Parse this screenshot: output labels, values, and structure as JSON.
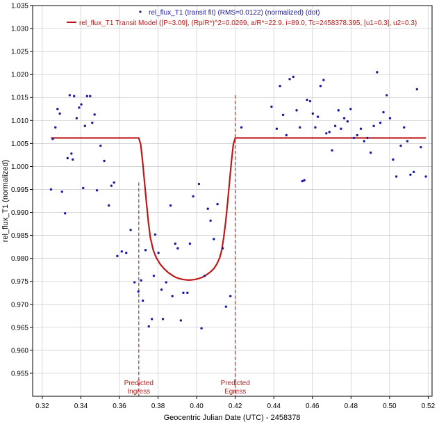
{
  "chart_data": {
    "type": "scatter",
    "xlabel": "Geocentric Julian Date (UTC) - 2458378",
    "ylabel": "rel_flux_T1 (normalized)",
    "xlim": [
      0.315,
      0.522
    ],
    "ylim": [
      0.95,
      1.035
    ],
    "xticks": [
      "0.32",
      "0.34",
      "0.36",
      "0.38",
      "0.40",
      "0.42",
      "0.44",
      "0.46",
      "0.48",
      "0.50",
      "0.52"
    ],
    "yticks": [
      "0.955",
      "0.960",
      "0.965",
      "0.970",
      "0.975",
      "0.980",
      "0.985",
      "0.990",
      "0.995",
      "1.000",
      "1.005",
      "1.010",
      "1.015",
      "1.020",
      "1.025",
      "1.030",
      "1.035"
    ],
    "grid": true,
    "legend_position": "top-center",
    "colors": {
      "data": "#1a1aa6",
      "model": "#c01818",
      "marker": "#c83030"
    },
    "series": [
      {
        "name": "rel_flux_T1 (transit fit) (RMS=0.0122) (normalized) (dot)",
        "kind": "points",
        "x": [
          0.3245,
          0.3254,
          0.3268,
          0.3279,
          0.3291,
          0.3302,
          0.3318,
          0.3331,
          0.3342,
          0.3351,
          0.3358,
          0.3365,
          0.3378,
          0.3391,
          0.3402,
          0.3412,
          0.3421,
          0.3432,
          0.3448,
          0.3459,
          0.3471,
          0.3483,
          0.3502,
          0.3521,
          0.3545,
          0.3558,
          0.3572,
          0.3589,
          0.3612,
          0.3635,
          0.3658,
          0.3678,
          0.3698,
          0.3712,
          0.3721,
          0.3735,
          0.3752,
          0.3768,
          0.3778,
          0.3785,
          0.3802,
          0.3818,
          0.3825,
          0.3842,
          0.3865,
          0.3874,
          0.3889,
          0.3902,
          0.3918,
          0.3931,
          0.3952,
          0.3965,
          0.3982,
          0.4012,
          0.4025,
          0.4041,
          0.4058,
          0.4072,
          0.4089,
          0.4108,
          0.4135,
          0.4152,
          0.4175,
          0.4232,
          0.4388,
          0.4415,
          0.4432,
          0.4448,
          0.4465,
          0.4482,
          0.4501,
          0.4518,
          0.4535,
          0.4548,
          0.4558,
          0.4572,
          0.4588,
          0.4602,
          0.4615,
          0.4628,
          0.4642,
          0.4658,
          0.4672,
          0.4688,
          0.4702,
          0.4718,
          0.4735,
          0.4748,
          0.4765,
          0.4782,
          0.4798,
          0.4815,
          0.4832,
          0.4851,
          0.4868,
          0.4885,
          0.4902,
          0.4918,
          0.4935,
          0.4952,
          0.4968,
          0.4985,
          0.5002,
          0.5018,
          0.5035,
          0.5058,
          0.5075,
          0.5092,
          0.5108,
          0.5125,
          0.5142,
          0.5162,
          0.5188
        ],
        "y": [
          0.995,
          1.006,
          1.0085,
          1.0125,
          1.0115,
          0.9945,
          0.9898,
          1.0018,
          1.0155,
          1.0028,
          1.0015,
          1.0153,
          1.0105,
          1.0128,
          1.0135,
          0.9953,
          1.0088,
          1.0153,
          1.0153,
          1.0095,
          1.0113,
          0.9948,
          1.0045,
          1.0012,
          0.9915,
          0.9958,
          0.9965,
          0.9805,
          0.9815,
          0.9812,
          0.9862,
          0.9748,
          0.9728,
          0.9752,
          0.9708,
          0.9818,
          0.9652,
          0.9668,
          0.9762,
          0.9852,
          0.9812,
          0.9732,
          0.9668,
          0.9748,
          0.9915,
          0.9718,
          0.9832,
          0.9822,
          0.9665,
          0.9725,
          0.9725,
          0.9832,
          0.9935,
          0.9962,
          0.9648,
          0.9762,
          0.9908,
          0.9882,
          0.9842,
          0.9918,
          0.9822,
          0.9695,
          0.9718,
          1.0085,
          1.013,
          1.0082,
          1.0175,
          1.0112,
          1.0068,
          1.019,
          1.0195,
          1.0122,
          1.0085,
          0.9968,
          0.997,
          1.0145,
          1.0142,
          1.0115,
          1.0085,
          1.0108,
          1.0175,
          1.0188,
          1.0072,
          1.0075,
          1.0035,
          1.0088,
          1.0122,
          1.0082,
          1.0105,
          1.0098,
          1.0125,
          1.0062,
          1.0068,
          1.0082,
          1.0055,
          1.0062,
          1.003,
          1.0088,
          1.0205,
          1.0095,
          1.0118,
          1.0155,
          1.0105,
          1.0015,
          0.9978,
          1.0045,
          1.0085,
          1.0055,
          0.9982,
          0.9988,
          1.0168,
          1.0042,
          0.9978
        ]
      },
      {
        "name": "rel_flux_T1 Transit Model ([P=3.09], (Rp/R*)^2=0.0269, a/R*=22.9, i=89.0, Tc=2458378.395, [u1=0.3], u2=0.3)",
        "kind": "line",
        "x": [
          0.3245,
          0.37,
          0.371,
          0.372,
          0.373,
          0.374,
          0.375,
          0.376,
          0.3775,
          0.379,
          0.381,
          0.383,
          0.385,
          0.387,
          0.389,
          0.391,
          0.393,
          0.395,
          0.397,
          0.399,
          0.401,
          0.403,
          0.405,
          0.407,
          0.409,
          0.4105,
          0.412,
          0.413,
          0.414,
          0.415,
          0.416,
          0.417,
          0.418,
          0.419,
          0.42,
          0.421,
          0.5188
        ],
        "y": [
          1.0062,
          1.0062,
          1.0048,
          1.001,
          0.9965,
          0.992,
          0.9878,
          0.9845,
          0.9818,
          0.9802,
          0.9788,
          0.9778,
          0.977,
          0.9764,
          0.9759,
          0.9756,
          0.9754,
          0.9753,
          0.9753,
          0.9754,
          0.9756,
          0.9759,
          0.9764,
          0.977,
          0.9778,
          0.9788,
          0.9802,
          0.9818,
          0.9845,
          0.9878,
          0.992,
          0.9965,
          1.001,
          1.0048,
          1.0062,
          1.0062,
          1.0062
        ]
      }
    ],
    "markers": [
      {
        "x": 0.37,
        "y_top": 0.9965,
        "label": [
          "Predicted",
          "Ingress"
        ]
      },
      {
        "x": 0.42,
        "y_top": 1.0155,
        "label": [
          "Predicted",
          "Egress"
        ]
      }
    ]
  }
}
